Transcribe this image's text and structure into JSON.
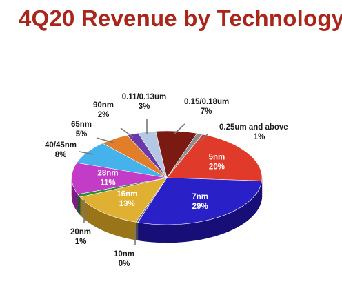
{
  "chart_data": {
    "type": "pie",
    "title": "4Q20 Revenue by Technology",
    "slices": [
      {
        "name": "5nm",
        "value_label": "20%",
        "value": 20,
        "color": "#e03a2a",
        "side": "#9a1e14"
      },
      {
        "name": "7nm",
        "value_label": "29%",
        "value": 29,
        "color": "#2a20c8",
        "side": "#170e78"
      },
      {
        "name": "10nm",
        "value_label": "0%",
        "value": 0,
        "color": "#7a7a7a",
        "side": "#4a4a4a"
      },
      {
        "name": "16nm",
        "value_label": "13%",
        "value": 13,
        "color": "#e0b032",
        "side": "#9a7418"
      },
      {
        "name": "20nm",
        "value_label": "1%",
        "value": 1,
        "color": "#2e8c3a",
        "side": "#1c5a24"
      },
      {
        "name": "28nm",
        "value_label": "11%",
        "value": 11,
        "color": "#c23cc8",
        "side": "#7a1e80"
      },
      {
        "name": "40/45nm",
        "value_label": "8%",
        "value": 8,
        "color": "#46b2ec",
        "side": "#1c6c98"
      },
      {
        "name": "65nm",
        "value_label": "5%",
        "value": 5,
        "color": "#e07e2a",
        "side": "#984e14"
      },
      {
        "name": "90nm",
        "value_label": "2%",
        "value": 2,
        "color": "#6a3aa8",
        "side": "#42206c"
      },
      {
        "name": "0.11/0.13um",
        "value_label": "3%",
        "value": 3,
        "color": "#b4c8e4",
        "side": "#7488a4"
      },
      {
        "name": "0.15/0.18um",
        "value_label": "7%",
        "value": 7,
        "color": "#7a1a12",
        "side": "#4a0c08"
      },
      {
        "name": "0.25um and above",
        "value_label": "1%",
        "value": 1,
        "color": "#8c8c8c",
        "side": "#5a5a5a"
      }
    ],
    "legend": "none"
  }
}
